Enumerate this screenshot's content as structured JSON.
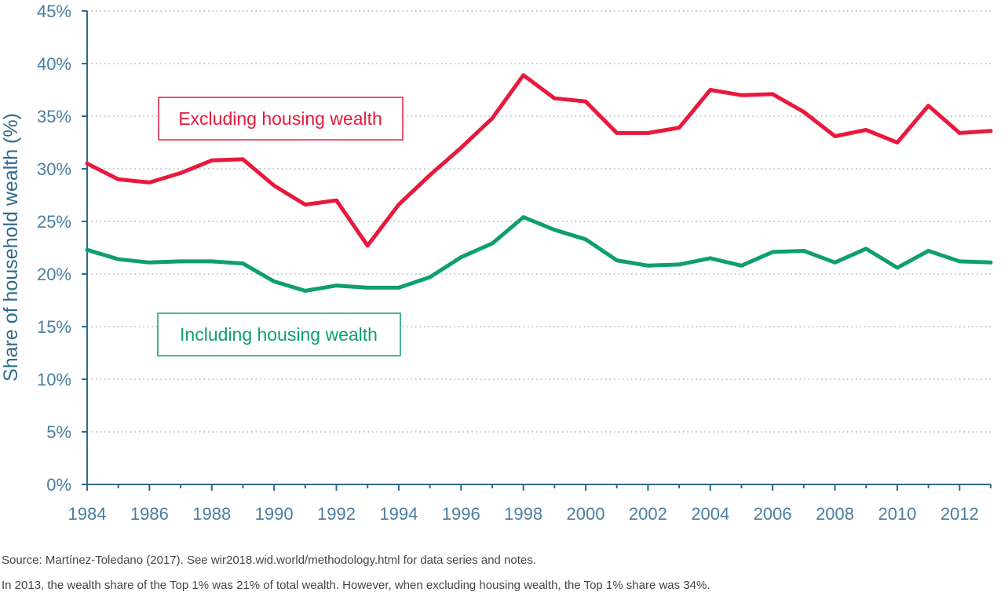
{
  "chart_data": {
    "type": "line",
    "title": "",
    "xlabel": "",
    "ylabel": "Share of household wealth (%)",
    "xlim": [
      1984,
      2013
    ],
    "ylim": [
      0,
      45
    ],
    "y_ticks": [
      0,
      5,
      10,
      15,
      20,
      25,
      30,
      35,
      40,
      45
    ],
    "y_tick_labels": [
      "0%",
      "5%",
      "10%",
      "15%",
      "20%",
      "25%",
      "30%",
      "35%",
      "40%",
      "45%"
    ],
    "x_tick_labels": [
      "1984",
      "1986",
      "1988",
      "1990",
      "1992",
      "1994",
      "1996",
      "1998",
      "2000",
      "2002",
      "2004",
      "2006",
      "2008",
      "2010",
      "2012"
    ],
    "grid": true,
    "x": [
      1984,
      1985,
      1986,
      1987,
      1988,
      1989,
      1990,
      1991,
      1992,
      1993,
      1994,
      1995,
      1996,
      1997,
      1998,
      1999,
      2000,
      2001,
      2002,
      2003,
      2004,
      2005,
      2006,
      2007,
      2008,
      2009,
      2010,
      2011,
      2012,
      2013
    ],
    "series": [
      {
        "name": "Excluding housing wealth",
        "color": "#e8193c",
        "values": [
          30.5,
          29.0,
          28.7,
          29.6,
          30.8,
          30.9,
          28.4,
          26.6,
          27.0,
          22.7,
          26.6,
          29.4,
          32.0,
          34.8,
          38.9,
          36.7,
          36.4,
          33.4,
          33.4,
          33.9,
          37.5,
          37.0,
          37.1,
          35.4,
          33.1,
          33.7,
          32.5,
          36.0,
          33.4,
          33.6
        ]
      },
      {
        "name": "Including housing wealth",
        "color": "#0fa06a",
        "values": [
          22.3,
          21.4,
          21.1,
          21.2,
          21.2,
          21.0,
          19.3,
          18.4,
          18.9,
          18.7,
          18.7,
          19.7,
          21.6,
          22.9,
          25.4,
          24.2,
          23.3,
          21.3,
          20.8,
          20.9,
          21.5,
          20.8,
          22.1,
          22.2,
          21.1,
          22.4,
          20.6,
          22.2,
          21.2,
          21.1
        ]
      }
    ]
  },
  "notes": {
    "source": "Source: Martínez-Toledano (2017). See wir2018.wid.world/methodology.html for data series and notes.",
    "caption": "In 2013, the wealth share of the Top 1% was 21% of total wealth. However, when excluding housing wealth, the Top 1% share was 34%."
  }
}
